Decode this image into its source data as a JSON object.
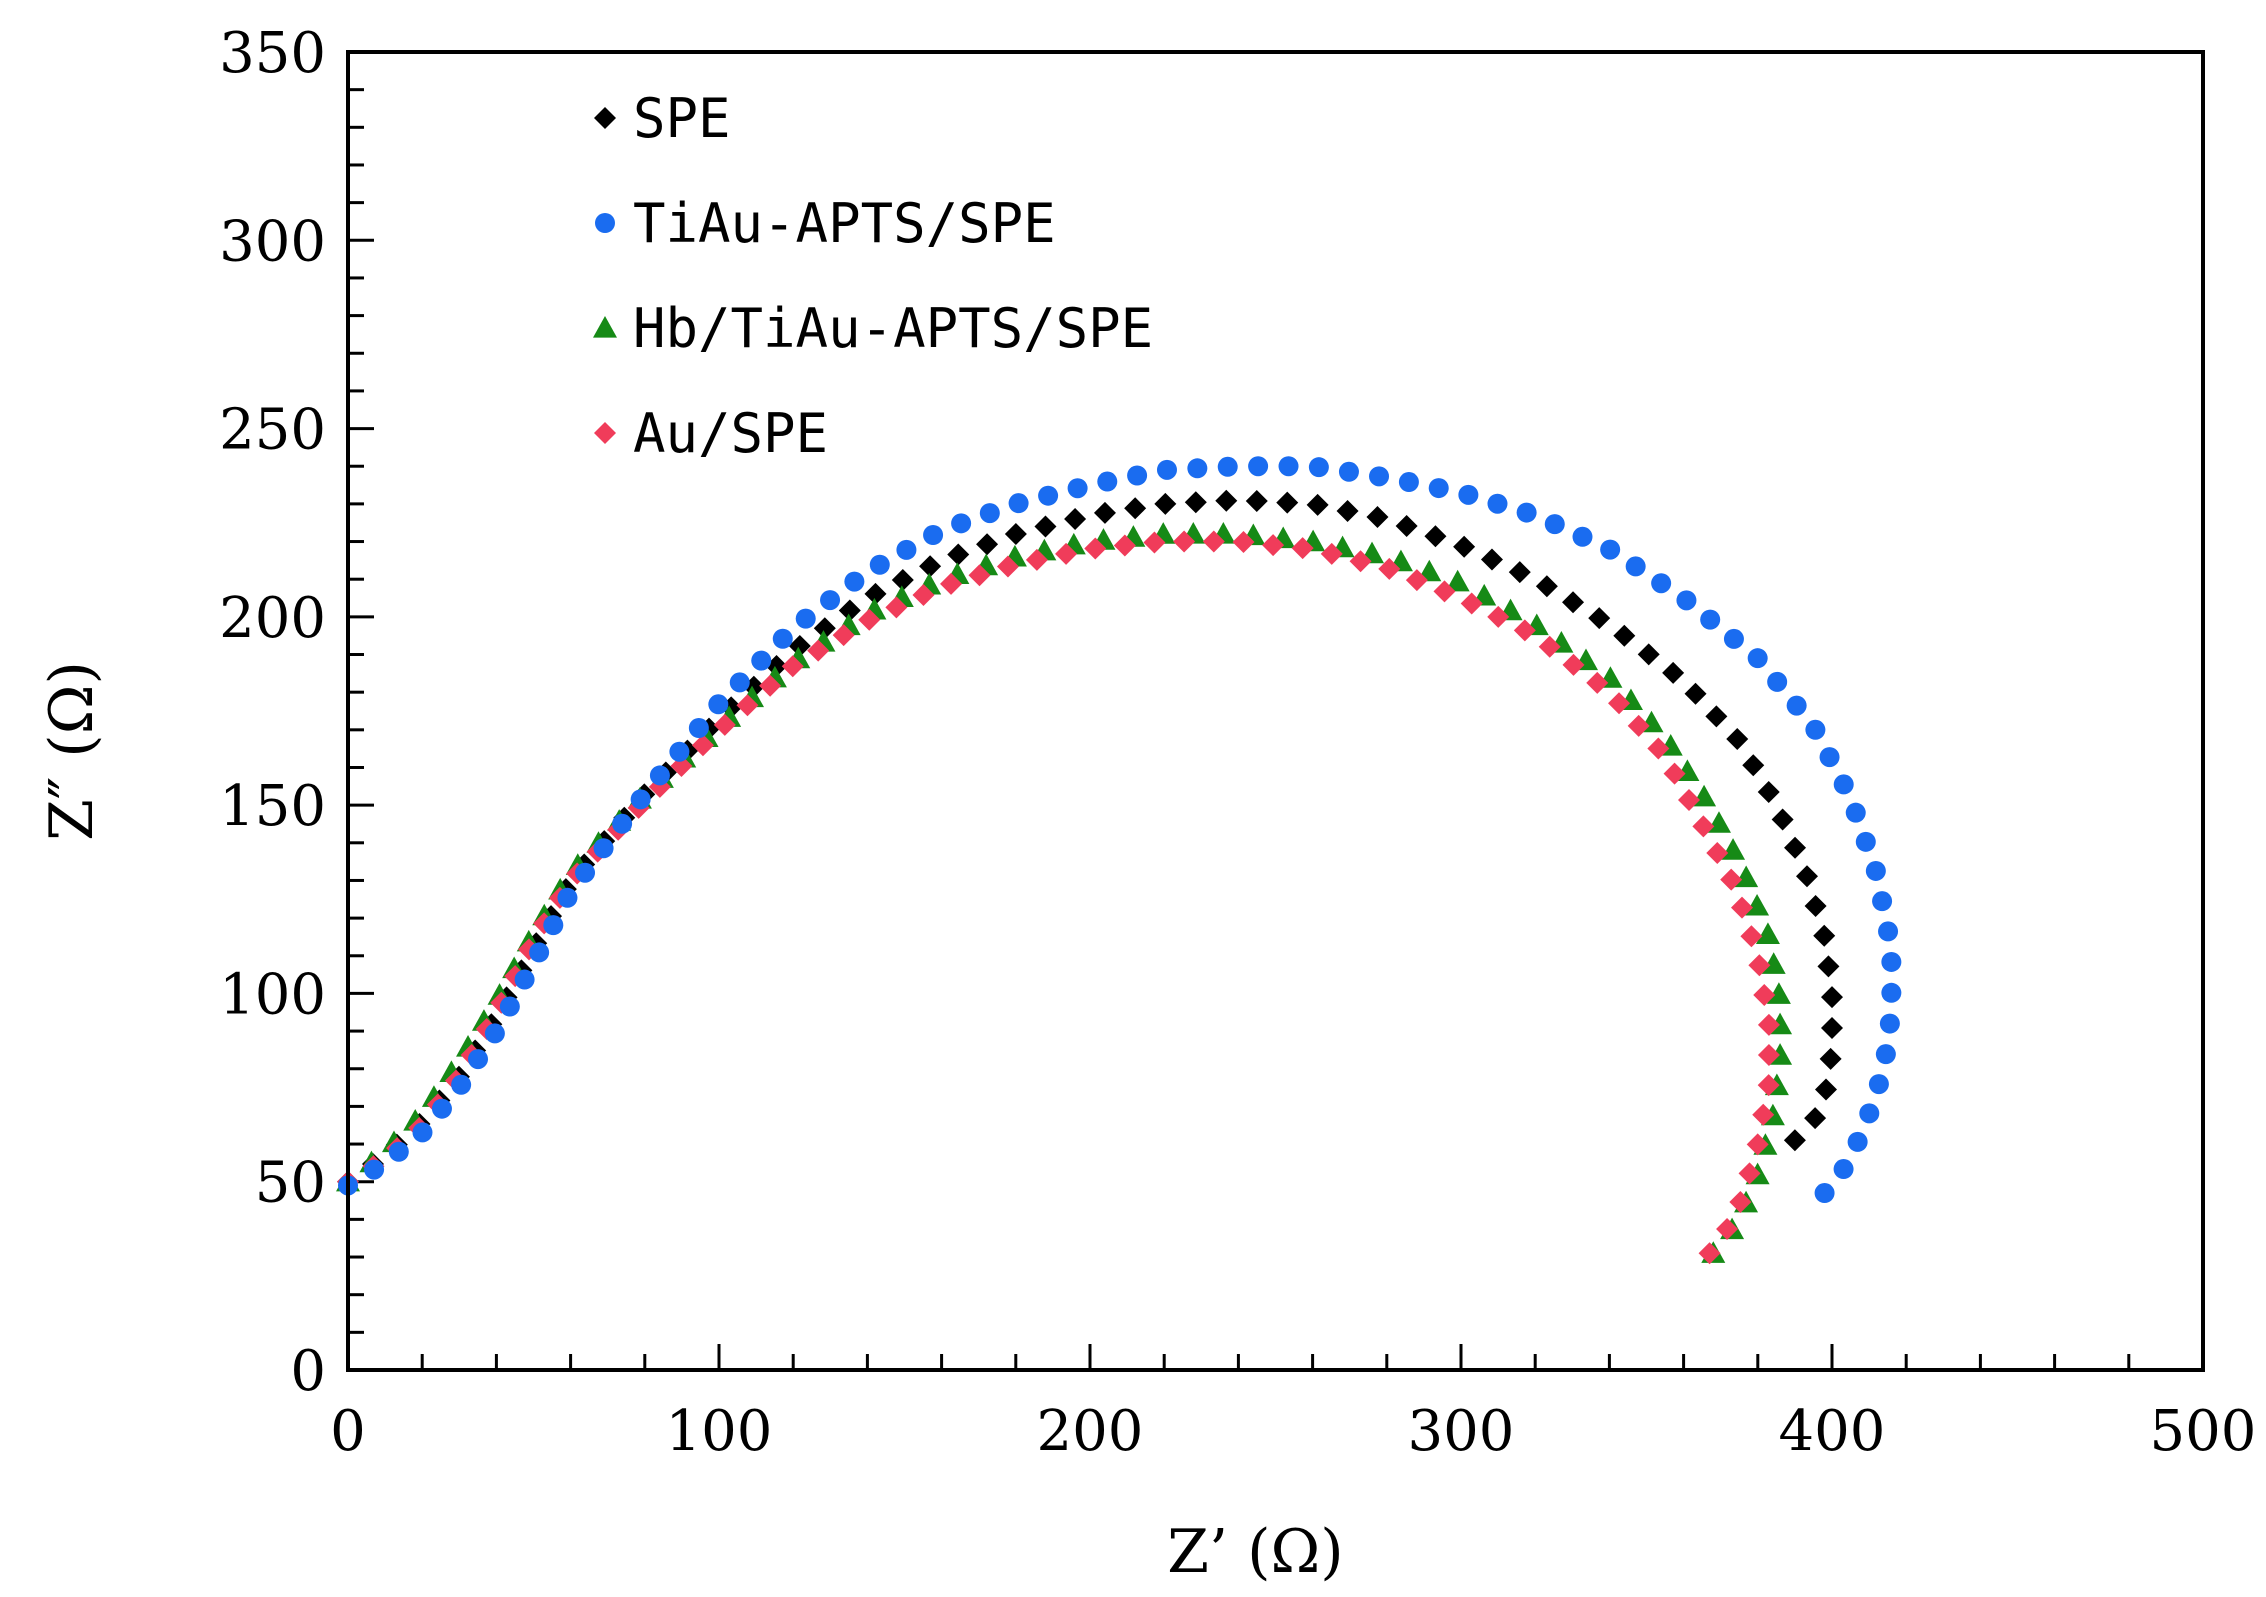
{
  "chart_data": {
    "type": "scatter",
    "title": "",
    "xlabel": "Z’ (Ω)",
    "ylabel": "Z″ (Ω)",
    "xlim": [
      0,
      500
    ],
    "ylim": [
      0,
      350
    ],
    "xticks": [
      0,
      100,
      200,
      300,
      400,
      500
    ],
    "yticks": [
      0,
      50,
      100,
      150,
      200,
      250,
      300,
      350
    ],
    "grid": false,
    "legend_position": "top-left",
    "series": [
      {
        "name": "SPE",
        "marker": "diamond",
        "color": "#000000",
        "anchors": [
          [
            0,
            50
          ],
          [
            10,
            57
          ],
          [
            20,
            66
          ],
          [
            30,
            78
          ],
          [
            40,
            94
          ],
          [
            50,
            112
          ],
          [
            60,
            130
          ],
          [
            80,
            153
          ],
          [
            100,
            173
          ],
          [
            120,
            191
          ],
          [
            140,
            205
          ],
          [
            160,
            215
          ],
          [
            180,
            222
          ],
          [
            200,
            227
          ],
          [
            220,
            230
          ],
          [
            240,
            231
          ],
          [
            260,
            230
          ],
          [
            280,
            226
          ],
          [
            300,
            219
          ],
          [
            320,
            210
          ],
          [
            340,
            198
          ],
          [
            360,
            183
          ],
          [
            375,
            167
          ],
          [
            385,
            150
          ],
          [
            393,
            132
          ],
          [
            398,
            115
          ],
          [
            400,
            100
          ],
          [
            400,
            85
          ],
          [
            398,
            72
          ],
          [
            394,
            64
          ],
          [
            390,
            61
          ]
        ],
        "count": 72
      },
      {
        "name": "TiAu-APTS/SPE",
        "marker": "circle",
        "color": "#1a6cf0",
        "anchors": [
          [
            0,
            49
          ],
          [
            10,
            55
          ],
          [
            20,
            63
          ],
          [
            30,
            75
          ],
          [
            40,
            90
          ],
          [
            50,
            108
          ],
          [
            60,
            127
          ],
          [
            80,
            153
          ],
          [
            100,
            177
          ],
          [
            120,
            197
          ],
          [
            140,
            212
          ],
          [
            160,
            223
          ],
          [
            180,
            230
          ],
          [
            200,
            235
          ],
          [
            220,
            239
          ],
          [
            240,
            240
          ],
          [
            260,
            240
          ],
          [
            280,
            237
          ],
          [
            300,
            233
          ],
          [
            320,
            227
          ],
          [
            340,
            218
          ],
          [
            360,
            205
          ],
          [
            380,
            189
          ],
          [
            395,
            171
          ],
          [
            405,
            152
          ],
          [
            412,
            132
          ],
          [
            416,
            112
          ],
          [
            416,
            95
          ],
          [
            414,
            80
          ],
          [
            410,
            68
          ],
          [
            405,
            56
          ],
          [
            400,
            49
          ],
          [
            398,
            47
          ]
        ],
        "count": 78
      },
      {
        "name": "Hb/TiAu-APTS/SPE",
        "marker": "triangle",
        "color": "#168a16",
        "anchors": [
          [
            0,
            50
          ],
          [
            10,
            58
          ],
          [
            20,
            68
          ],
          [
            30,
            82
          ],
          [
            40,
            98
          ],
          [
            50,
            116
          ],
          [
            60,
            132
          ],
          [
            80,
            153
          ],
          [
            100,
            171
          ],
          [
            120,
            188
          ],
          [
            140,
            201
          ],
          [
            160,
            210
          ],
          [
            180,
            216
          ],
          [
            200,
            220
          ],
          [
            220,
            222
          ],
          [
            240,
            222
          ],
          [
            260,
            220
          ],
          [
            280,
            216
          ],
          [
            300,
            209
          ],
          [
            320,
            198
          ],
          [
            340,
            184
          ],
          [
            355,
            168
          ],
          [
            367,
            150
          ],
          [
            376,
            133
          ],
          [
            383,
            115
          ],
          [
            386,
            98
          ],
          [
            386,
            82
          ],
          [
            384,
            67
          ],
          [
            380,
            52
          ],
          [
            375,
            40
          ],
          [
            370,
            33
          ],
          [
            368,
            31
          ]
        ],
        "count": 74
      },
      {
        "name": "Au/SPE",
        "marker": "diamond",
        "color": "#f03c5a",
        "anchors": [
          [
            0,
            50
          ],
          [
            10,
            56
          ],
          [
            20,
            65
          ],
          [
            30,
            78
          ],
          [
            40,
            95
          ],
          [
            50,
            114
          ],
          [
            60,
            130
          ],
          [
            80,
            151
          ],
          [
            100,
            170
          ],
          [
            120,
            187
          ],
          [
            140,
            199
          ],
          [
            160,
            208
          ],
          [
            180,
            214
          ],
          [
            200,
            218
          ],
          [
            220,
            220
          ],
          [
            240,
            220
          ],
          [
            260,
            218
          ],
          [
            280,
            213
          ],
          [
            300,
            205
          ],
          [
            320,
            195
          ],
          [
            340,
            180
          ],
          [
            355,
            163
          ],
          [
            365,
            145
          ],
          [
            374,
            128
          ],
          [
            380,
            110
          ],
          [
            383,
            92
          ],
          [
            383,
            76
          ],
          [
            380,
            60
          ],
          [
            376,
            46
          ],
          [
            371,
            36
          ],
          [
            367,
            31
          ]
        ],
        "count": 74
      }
    ]
  }
}
